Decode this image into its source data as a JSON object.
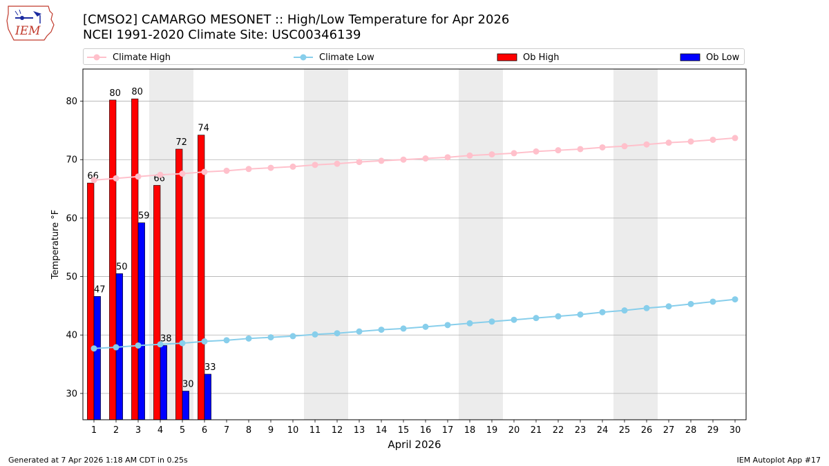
{
  "title_line1": "[CMSO2] CAMARGO MESONET :: High/Low Temperature for Apr 2026",
  "title_line2": "NCEI 1991-2020 Climate Site: USC00346139",
  "footer_left": "Generated at 7 Apr 2026 1:18 AM CDT in 0.25s",
  "footer_right": "IEM Autoplot App #17",
  "logo_text": "IEM",
  "legend": [
    {
      "label": "Climate High",
      "color": "#ffc0cb",
      "kind": "line"
    },
    {
      "label": "Climate Low",
      "color": "#87ceeb",
      "kind": "line"
    },
    {
      "label": "Ob High",
      "color": "#ff0000",
      "kind": "bar"
    },
    {
      "label": "Ob Low",
      "color": "#0000ff",
      "kind": "bar"
    }
  ],
  "chart_data": {
    "type": "bar",
    "xlabel": "April 2026",
    "ylabel": "Temperature °F",
    "xlim": [
      0.5,
      30.5
    ],
    "ylim": [
      25.5,
      85.5
    ],
    "yticks": [
      30,
      40,
      50,
      60,
      70,
      80
    ],
    "grid": "y",
    "legend_position": "top",
    "days": [
      1,
      2,
      3,
      4,
      5,
      6,
      7,
      8,
      9,
      10,
      11,
      12,
      13,
      14,
      15,
      16,
      17,
      18,
      19,
      20,
      21,
      22,
      23,
      24,
      25,
      26,
      27,
      28,
      29,
      30
    ],
    "weekend_shading": [
      [
        3.5,
        5.5
      ],
      [
        10.5,
        12.5
      ],
      [
        17.5,
        19.5
      ],
      [
        24.5,
        26.5
      ]
    ],
    "series": [
      {
        "name": "Ob High",
        "color": "#ff0000",
        "days": [
          1,
          2,
          3,
          4,
          5,
          6
        ],
        "values": [
          66.0,
          80.2,
          80.4,
          65.6,
          71.8,
          74.2
        ],
        "labels": [
          "66",
          "80",
          "80",
          "66",
          "72",
          "74"
        ]
      },
      {
        "name": "Ob Low",
        "color": "#0000ff",
        "days": [
          1,
          2,
          3,
          4,
          5,
          6
        ],
        "values": [
          46.6,
          50.5,
          59.2,
          38.2,
          30.4,
          33.3
        ],
        "labels": [
          "47",
          "50",
          "59",
          "38",
          "30",
          "33"
        ]
      },
      {
        "name": "Climate High",
        "color": "#ffc0cb",
        "values": [
          66.5,
          66.8,
          67.1,
          67.4,
          67.6,
          67.9,
          68.1,
          68.4,
          68.6,
          68.8,
          69.1,
          69.3,
          69.6,
          69.8,
          70.0,
          70.2,
          70.4,
          70.7,
          70.9,
          71.1,
          71.4,
          71.6,
          71.8,
          72.1,
          72.3,
          72.6,
          72.9,
          73.1,
          73.4,
          73.7
        ]
      },
      {
        "name": "Climate Low",
        "color": "#87ceeb",
        "values": [
          37.7,
          37.9,
          38.2,
          38.4,
          38.6,
          38.9,
          39.1,
          39.4,
          39.6,
          39.8,
          40.1,
          40.3,
          40.6,
          40.9,
          41.1,
          41.4,
          41.7,
          42.0,
          42.3,
          42.6,
          42.9,
          43.2,
          43.5,
          43.9,
          44.2,
          44.6,
          44.9,
          45.3,
          45.7,
          46.1
        ]
      }
    ]
  }
}
